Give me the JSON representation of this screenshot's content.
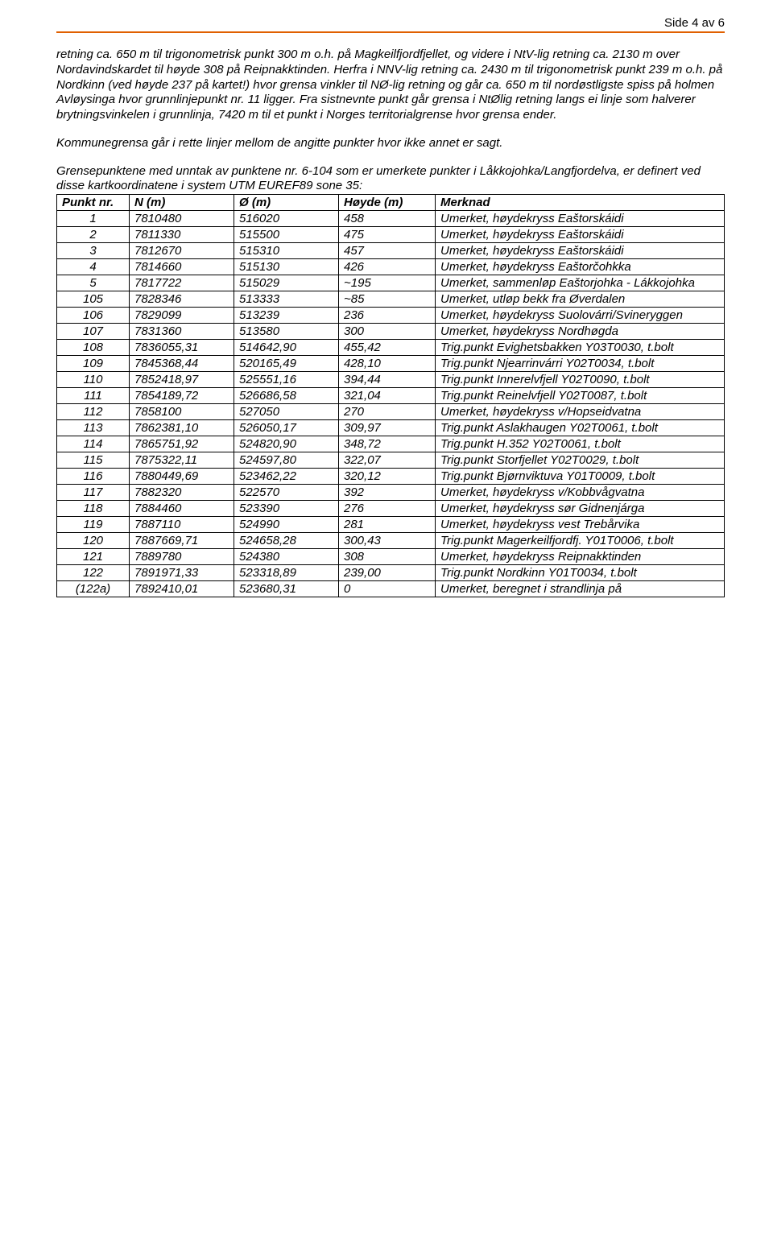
{
  "pageHeader": "Side 4 av 6",
  "paragraphs": [
    "retning ca. 650 m til trigonometrisk punkt 300 m o.h. på Magkeilfjordfjellet, og videre i NtV-lig retning ca. 2130 m over Nordavindskardet til høyde 308 på Reipnakktinden. Herfra i NNV-lig retning ca. 2430 m til trigonometrisk punkt 239 m o.h. på Nordkinn (ved høyde 237 på kartet!) hvor grensa vinkler til NØ-lig retning og går ca. 650 m til nordøstligste spiss på holmen Avløysinga hvor grunnlinjepunkt nr. 11 ligger. Fra sistnevnte punkt går grensa i NtØlig retning langs ei linje som halverer brytningsvinkelen i grunnlinja, 7420 m til et punkt i Norges territorialgrense hvor grensa ender.",
    "Kommunegrensa går i rette linjer mellom de angitte punkter hvor ikke annet er sagt.",
    "Grensepunktene med unntak av punktene nr. 6-104 som er umerkete punkter i Låkkojohka/Langfjordelva, er definert ved disse kartkoordinatene i system UTM EUREF89 sone 35:"
  ],
  "table": {
    "columns": [
      "Punkt nr.",
      "N (m)",
      "Ø (m)",
      "Høyde (m)",
      "Merknad"
    ],
    "rows": [
      [
        "1",
        "7810480",
        "516020",
        "458",
        "Umerket, høydekryss Eaštorskáidi"
      ],
      [
        "2",
        "7811330",
        "515500",
        "475",
        "Umerket, høydekryss Eaštorskáidi"
      ],
      [
        "3",
        "7812670",
        "515310",
        "457",
        "Umerket, høydekryss Eaštorskáidi"
      ],
      [
        "4",
        "7814660",
        "515130",
        "426",
        "Umerket, høydekryss Eaštorčohkka"
      ],
      [
        "5",
        "7817722",
        "515029",
        "~195",
        "Umerket, sammenløp Eaštorjohka - Lákkojohka"
      ],
      [
        "105",
        "7828346",
        "513333",
        "~85",
        "Umerket, utløp bekk fra Øverdalen"
      ],
      [
        "106",
        "7829099",
        "513239",
        "236",
        "Umerket, høydekryss Suolovárri/Svineryggen"
      ],
      [
        "107",
        "7831360",
        "513580",
        "300",
        "Umerket, høydekryss Nordhøgda"
      ],
      [
        "108",
        "7836055,31",
        "514642,90",
        "455,42",
        "Trig.punkt Evighetsbakken Y03T0030, t.bolt"
      ],
      [
        "109",
        "7845368,44",
        "520165,49",
        "428,10",
        "Trig.punkt Njearrinvárri Y02T0034, t.bolt"
      ],
      [
        "110",
        "7852418,97",
        "525551,16",
        "394,44",
        "Trig.punkt Innerelvfjell Y02T0090, t.bolt"
      ],
      [
        "111",
        "7854189,72",
        "526686,58",
        "321,04",
        "Trig.punkt Reinelvfjell Y02T0087, t.bolt"
      ],
      [
        "112",
        "7858100",
        "527050",
        "270",
        "Umerket, høydekryss v/Hopseidvatna"
      ],
      [
        "113",
        "7862381,10",
        "526050,17",
        "309,97",
        "Trig.punkt Aslakhaugen Y02T0061, t.bolt"
      ],
      [
        "114",
        "7865751,92",
        "524820,90",
        "348,72",
        "Trig.punkt H.352 Y02T0061, t.bolt"
      ],
      [
        "115",
        "7875322,11",
        "524597,80",
        "322,07",
        "Trig.punkt Storfjellet Y02T0029, t.bolt"
      ],
      [
        "116",
        "7880449,69",
        "523462,22",
        "320,12",
        "Trig.punkt Bjørnviktuva Y01T0009, t.bolt"
      ],
      [
        "117",
        "7882320",
        "522570",
        "392",
        "Umerket, høydekryss v/Kobbvågvatna"
      ],
      [
        "118",
        "7884460",
        "523390",
        "276",
        "Umerket, høydekryss sør Gidnenjárga"
      ],
      [
        "119",
        "7887110",
        "524990",
        "281",
        "Umerket, høydekryss vest Trebårvika"
      ],
      [
        "120",
        "7887669,71",
        "524658,28",
        "300,43",
        "Trig.punkt Magerkeilfjordfj. Y01T0006, t.bolt"
      ],
      [
        "121",
        "7889780",
        "524380",
        "308",
        "Umerket, høydekryss Reipnakktinden"
      ],
      [
        "122",
        "7891971,33",
        "523318,89",
        "239,00",
        "Trig.punkt Nordkinn Y01T0034, t.bolt"
      ],
      [
        "(122a)",
        "7892410,01",
        "523680,31",
        "0",
        "Umerket, beregnet i strandlinja på"
      ]
    ],
    "centeredFirstColRows": [
      0,
      1,
      2,
      3,
      4,
      5,
      6,
      7,
      8,
      9,
      10,
      11,
      12,
      13,
      14,
      15,
      16,
      17,
      18,
      19,
      20,
      21,
      22,
      23
    ]
  }
}
